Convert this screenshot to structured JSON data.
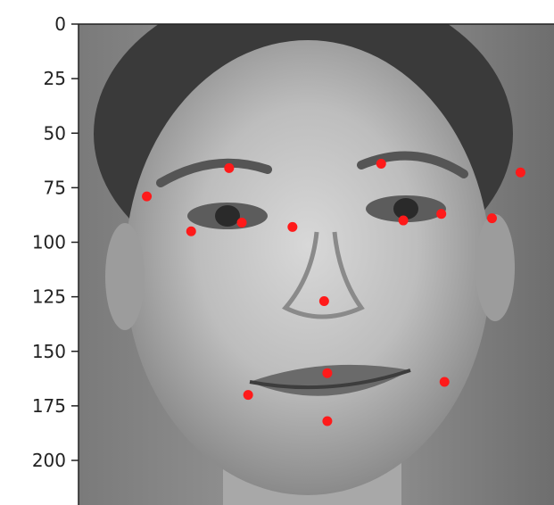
{
  "chart_data": {
    "type": "scatter",
    "title": "",
    "xlabel": "",
    "ylabel": "",
    "ylim": [
      0,
      220
    ],
    "y_inverted": true,
    "grid": false,
    "legend": "none",
    "y_ticks": [
      0,
      25,
      50,
      75,
      100,
      125,
      150,
      175,
      200
    ],
    "background": "grayscale face photograph",
    "marker_color": "#ff1a1a",
    "series": [
      {
        "points": [
          {
            "x": 21,
            "y": 79
          },
          {
            "x": 47,
            "y": 66
          },
          {
            "x": 95,
            "y": 64
          },
          {
            "x": 139,
            "y": 68
          },
          {
            "x": 35,
            "y": 95
          },
          {
            "x": 51,
            "y": 91
          },
          {
            "x": 67,
            "y": 93
          },
          {
            "x": 102,
            "y": 90
          },
          {
            "x": 114,
            "y": 87
          },
          {
            "x": 130,
            "y": 89
          },
          {
            "x": 77,
            "y": 127
          },
          {
            "x": 53,
            "y": 170
          },
          {
            "x": 78,
            "y": 160
          },
          {
            "x": 115,
            "y": 164
          },
          {
            "x": 78,
            "y": 182
          }
        ]
      }
    ]
  }
}
